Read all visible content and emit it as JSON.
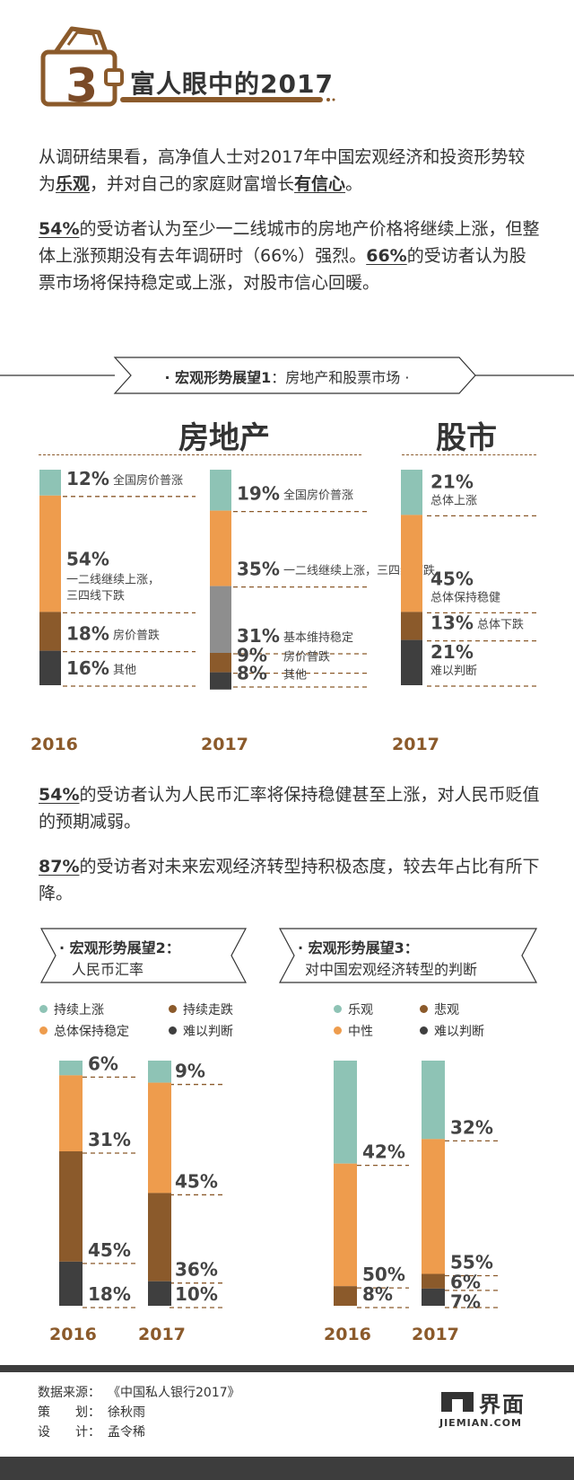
{
  "header": {
    "number": "3",
    "title": "富人眼中的2017"
  },
  "intro": {
    "p1_a": "从调研结果看，高净值人士对2017年中国宏观经济和投资形势较为",
    "p1_b": "乐观",
    "p1_c": "，并对自己的家庭财富增长",
    "p1_d": "有信心",
    "p1_e": "。",
    "p2_a": "54%",
    "p2_b": "的受访者认为至少一二线城市的房地产价格将继续上涨，但整体上涨预期没有去年调研时（66%）强烈。",
    "p2_c": "66%",
    "p2_d": "的受访者认为股票市场将保持稳定或上涨，对股市信心回暖。"
  },
  "banner1": {
    "bold": "· 宏观形势展望1",
    "rest": "：房地产和股票市场 ·"
  },
  "col_titles": {
    "realestate": "房地产",
    "stock": "股市"
  },
  "mid": {
    "p3_a": "54%",
    "p3_b": "的受访者认为人民币汇率将保持稳健甚至上涨，对人民币贬值的预期减弱。",
    "p4_a": "87%",
    "p4_b": "的受访者对未来宏观经济转型持积极态度，较去年占比有所下降。"
  },
  "box2": {
    "t1": "· 宏观形势展望2：",
    "t2": "人民币汇率"
  },
  "box3": {
    "t1": "· 宏观形势展望3：",
    "t2": "对中国宏观经济转型的判断"
  },
  "legend2": [
    "持续上涨",
    "持续走跌",
    "总体保持稳定",
    "难以判断"
  ],
  "legend3": [
    "乐观",
    "悲观",
    "中性",
    "难以判断"
  ],
  "colors": {
    "teal": "#8ec3b5",
    "orange": "#ee9c4d",
    "brown": "#8b5a2b",
    "dark": "#3f3f3f",
    "gray": "#8e8e8e"
  },
  "footer": {
    "source_k": "数据来源：",
    "source_v": "《中国私人银行2017》",
    "plan_k": "策　　划：",
    "plan_v": "徐秋雨",
    "design_k": "设　　计：",
    "design_v": "孟令稀",
    "logo_cn": "界面",
    "logo_en": "JIEMIAN.COM"
  },
  "chart_data": [
    {
      "type": "bar",
      "title": "房地产",
      "stacked": true,
      "categories": [
        "2016",
        "2017"
      ],
      "segments_2016": [
        {
          "pct": "12%",
          "value": 12,
          "label": "全国房价普涨",
          "color": "teal"
        },
        {
          "pct": "54%",
          "value": 54,
          "label": "一二线继续上涨，三四线下跌",
          "color": "orange"
        },
        {
          "pct": "18%",
          "value": 18,
          "label": "房价普跌",
          "color": "brown"
        },
        {
          "pct": "16%",
          "value": 16,
          "label": "其他",
          "color": "dark"
        }
      ],
      "segments_2017": [
        {
          "pct": "19%",
          "value": 19,
          "label": "全国房价普涨",
          "color": "teal"
        },
        {
          "pct": "35%",
          "value": 35,
          "label": "一二线继续上涨，三四线下跌",
          "color": "orange"
        },
        {
          "pct": "31%",
          "value": 31,
          "label": "基本维持稳定",
          "color": "gray"
        },
        {
          "pct": "9%",
          "value": 9,
          "label": "房价普跌",
          "color": "brown"
        },
        {
          "pct": "8%",
          "value": 8,
          "label": "其他",
          "color": "dark"
        }
      ]
    },
    {
      "type": "bar",
      "title": "股市",
      "stacked": true,
      "categories": [
        "2017"
      ],
      "segments_2017": [
        {
          "pct": "21%",
          "value": 21,
          "label": "总体上涨",
          "color": "teal"
        },
        {
          "pct": "45%",
          "value": 45,
          "label": "总体保持稳健",
          "color": "orange"
        },
        {
          "pct": "13%",
          "value": 13,
          "label": "总体下跌",
          "color": "brown"
        },
        {
          "pct": "21%",
          "value": 21,
          "label": "难以判断",
          "color": "dark"
        }
      ]
    },
    {
      "type": "bar",
      "title": "人民币汇率",
      "stacked": true,
      "categories": [
        "2016",
        "2017"
      ],
      "series": [
        {
          "name": "持续上涨",
          "values": [
            6,
            9
          ],
          "labels": [
            "6%",
            "9%"
          ],
          "color": "teal"
        },
        {
          "name": "总体保持稳定",
          "values": [
            31,
            45
          ],
          "labels": [
            "31%",
            "45%"
          ],
          "color": "orange"
        },
        {
          "name": "持续走跌",
          "values": [
            45,
            36
          ],
          "labels": [
            "45%",
            "36%"
          ],
          "color": "brown"
        },
        {
          "name": "难以判断",
          "values": [
            18,
            10
          ],
          "labels": [
            "18%",
            "10%"
          ],
          "color": "dark"
        }
      ]
    },
    {
      "type": "bar",
      "title": "对中国宏观经济转型的判断",
      "stacked": true,
      "categories": [
        "2016",
        "2017"
      ],
      "series": [
        {
          "name": "乐观",
          "values": [
            42,
            32
          ],
          "labels": [
            "42%",
            "32%"
          ],
          "color": "teal"
        },
        {
          "name": "中性",
          "values": [
            50,
            55
          ],
          "labels": [
            "50%",
            "55%"
          ],
          "color": "orange"
        },
        {
          "name": "悲观",
          "values": [
            8,
            6
          ],
          "labels": [
            "8%",
            "6%"
          ],
          "color": "brown"
        },
        {
          "name": "难以判断",
          "values": [
            0,
            7
          ],
          "labels": [
            "",
            "7%"
          ],
          "color": "dark"
        }
      ]
    }
  ]
}
